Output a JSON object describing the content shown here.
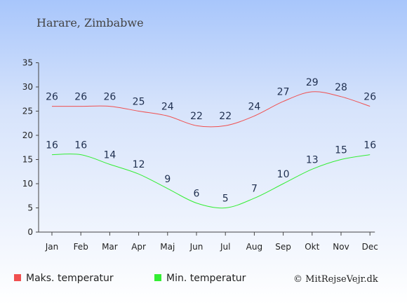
{
  "chart_data": {
    "type": "line",
    "title": "Harare, Zimbabwe",
    "categories": [
      "Jan",
      "Feb",
      "Mar",
      "Apr",
      "Maj",
      "Jun",
      "Jul",
      "Aug",
      "Sep",
      "Okt",
      "Nov",
      "Dec"
    ],
    "series": [
      {
        "name": "Maks. temperatur",
        "color": "#f05050",
        "values": [
          26,
          26,
          26,
          25,
          24,
          22,
          22,
          24,
          27,
          29,
          28,
          26
        ]
      },
      {
        "name": "Min. temperatur",
        "color": "#33ee33",
        "values": [
          16,
          16,
          14,
          12,
          9,
          6,
          5,
          7,
          10,
          13,
          15,
          16
        ]
      }
    ],
    "yticks": [
      0,
      5,
      10,
      15,
      20,
      25,
      30,
      35
    ],
    "ylim": [
      0,
      35
    ],
    "grid": false,
    "legend_position": "bottom-left"
  },
  "credit": "© MitRejseVejr.dk"
}
